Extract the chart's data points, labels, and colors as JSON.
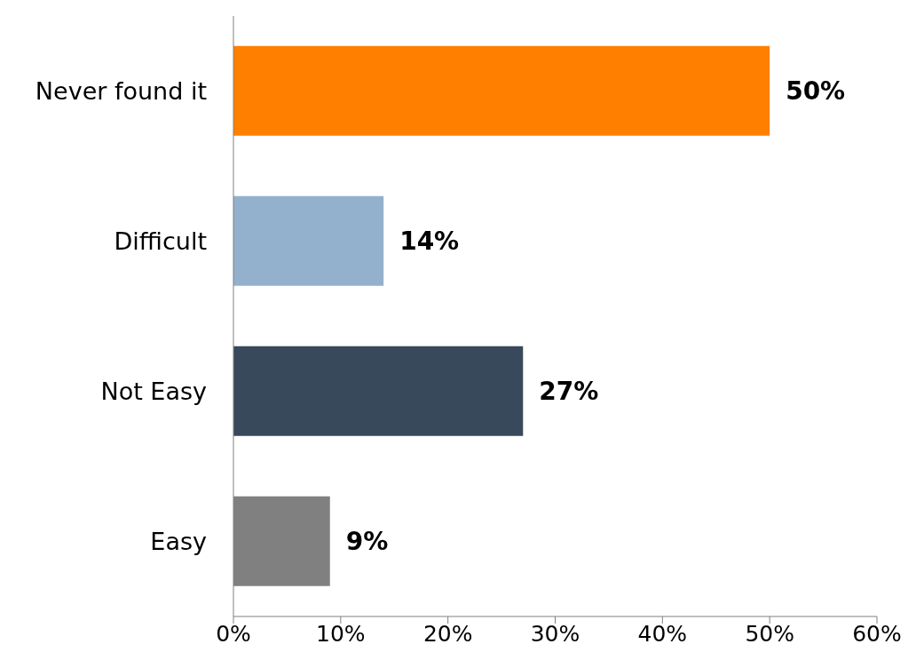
{
  "chart_data": {
    "type": "bar",
    "orientation": "horizontal",
    "categories": [
      "Never found it",
      "Difficult",
      "Not Easy",
      "Easy"
    ],
    "values": [
      50,
      14,
      27,
      9
    ],
    "colors": [
      "#ff7f00",
      "#93b1cd",
      "#37495a",
      "#808080"
    ],
    "value_labels": [
      "50%",
      "14%",
      "27%",
      "9%"
    ],
    "xlim": [
      0,
      60
    ],
    "xticks": [
      {
        "value": 0,
        "label": "0%"
      },
      {
        "value": 10,
        "label": "10%"
      },
      {
        "value": 20,
        "label": "20%"
      },
      {
        "value": 30,
        "label": "30%"
      },
      {
        "value": 40,
        "label": "40%"
      },
      {
        "value": 50,
        "label": "50%"
      },
      {
        "value": 60,
        "label": "60%"
      }
    ],
    "grid": false
  }
}
